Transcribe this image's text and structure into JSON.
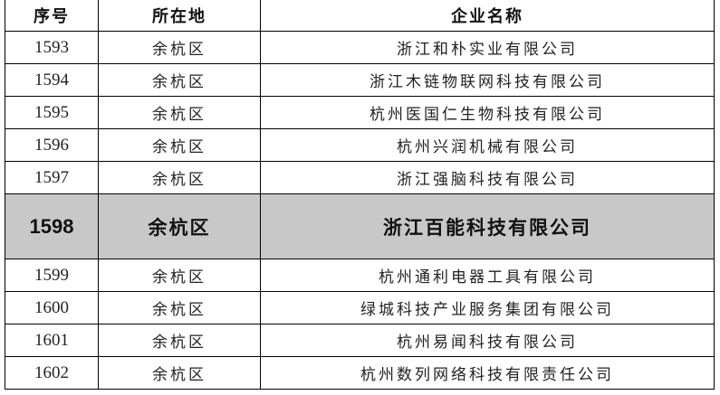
{
  "header": {
    "seq": "序号",
    "location": "所在地",
    "company": "企业名称"
  },
  "highlight_color": "#c8c8c8",
  "rows": [
    {
      "seq": "1593",
      "location": "余杭区",
      "company": "浙江和朴实业有限公司"
    },
    {
      "seq": "1594",
      "location": "余杭区",
      "company": "浙江木链物联网科技有限公司"
    },
    {
      "seq": "1595",
      "location": "余杭区",
      "company": "杭州医国仁生物科技有限公司"
    },
    {
      "seq": "1596",
      "location": "余杭区",
      "company": "杭州兴润机械有限公司"
    },
    {
      "seq": "1597",
      "location": "余杭区",
      "company": "浙江强脑科技有限公司"
    },
    {
      "seq": "1598",
      "location": "余杭区",
      "company": "浙江百能科技有限公司",
      "highlighted": true
    },
    {
      "seq": "1599",
      "location": "余杭区",
      "company": "杭州通利电器工具有限公司"
    },
    {
      "seq": "1600",
      "location": "余杭区",
      "company": "绿城科技产业服务集团有限公司"
    },
    {
      "seq": "1601",
      "location": "余杭区",
      "company": "杭州易闻科技有限公司"
    },
    {
      "seq": "1602",
      "location": "余杭区",
      "company": "杭州数列网络科技有限责任公司"
    }
  ]
}
